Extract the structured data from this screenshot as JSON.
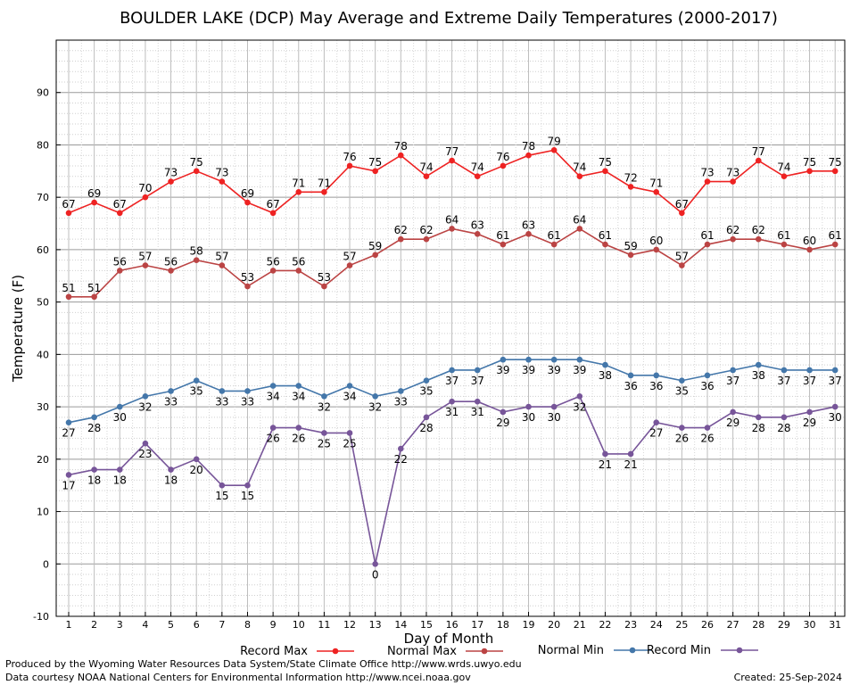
{
  "chart_data": {
    "type": "line",
    "title": "BOULDER LAKE (DCP) May Average and Extreme Daily Temperatures (2000-2017)",
    "xlabel": "Day of Month",
    "ylabel": "Temperature (F)",
    "ylim": [
      -10,
      100
    ],
    "yticks": [
      -10,
      0,
      10,
      20,
      30,
      40,
      50,
      60,
      70,
      80,
      90
    ],
    "x": [
      1,
      2,
      3,
      4,
      5,
      6,
      7,
      8,
      9,
      10,
      11,
      12,
      13,
      14,
      15,
      16,
      17,
      18,
      19,
      20,
      21,
      22,
      23,
      24,
      25,
      26,
      27,
      28,
      29,
      30,
      31
    ],
    "grid": true,
    "legend_position": "bottom",
    "series": [
      {
        "name": "Record Max",
        "color": "#ee2222",
        "label_pos": "above",
        "values": [
          67,
          69,
          67,
          70,
          73,
          75,
          73,
          69,
          67,
          71,
          71,
          76,
          75,
          78,
          74,
          77,
          74,
          76,
          78,
          79,
          74,
          75,
          72,
          71,
          67,
          73,
          73,
          77,
          74,
          75,
          75
        ]
      },
      {
        "name": "Normal Max",
        "color": "#bb4444",
        "label_pos": "above",
        "values": [
          51,
          51,
          56,
          57,
          56,
          58,
          57,
          53,
          56,
          56,
          53,
          57,
          59,
          62,
          62,
          64,
          63,
          61,
          63,
          61,
          64,
          61,
          59,
          60,
          57,
          61,
          62,
          62,
          61,
          60,
          61
        ]
      },
      {
        "name": "Normal Min",
        "color": "#4477aa",
        "label_pos": "below",
        "values": [
          27,
          28,
          30,
          32,
          33,
          35,
          33,
          33,
          34,
          34,
          32,
          34,
          32,
          33,
          35,
          37,
          37,
          39,
          39,
          39,
          39,
          38,
          36,
          36,
          35,
          36,
          37,
          38,
          37,
          37,
          37
        ]
      },
      {
        "name": "Record Min",
        "color": "#775599",
        "label_pos": "below",
        "values": [
          17,
          18,
          18,
          23,
          18,
          20,
          15,
          15,
          26,
          26,
          25,
          25,
          0,
          22,
          28,
          31,
          31,
          29,
          30,
          30,
          32,
          21,
          21,
          27,
          26,
          26,
          29,
          28,
          28,
          29,
          30
        ]
      }
    ]
  },
  "footer": {
    "produced_by": "Produced by the Wyoming Water Resources Data System/State Climate Office http://www.wrds.uwyo.edu",
    "courtesy": "Data courtesy NOAA National Centers for Environmental Information http://www.ncei.noaa.gov",
    "created": "Created:  25-Sep-2024"
  }
}
